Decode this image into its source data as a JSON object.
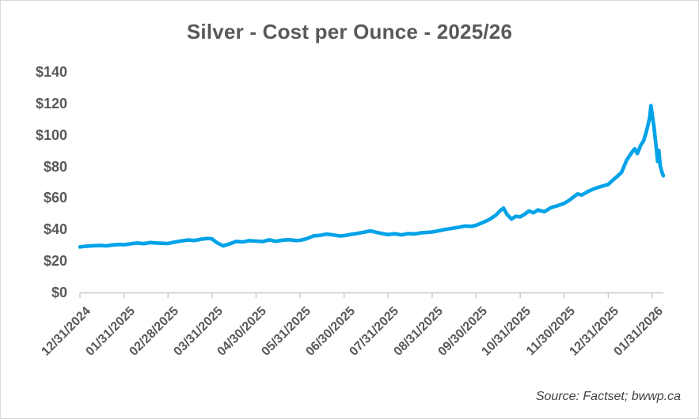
{
  "source": "Source: Factset; bwwp.ca",
  "colors": {
    "line": "#00A2E8",
    "label_text": "#595959",
    "source_text": "#404040",
    "axis_line": "#c8c8c8",
    "background": "#ffffff"
  },
  "chart_data": {
    "type": "line",
    "title": "Silver - Cost per Ounce - 2025/26",
    "xlabel": "",
    "ylabel": "",
    "grid": false,
    "legend": null,
    "ylim": [
      0,
      140
    ],
    "y_tick_labels": [
      "$0",
      "$20",
      "$40",
      "$60",
      "$80",
      "$100",
      "$120",
      "$140"
    ],
    "x_tick_labels": [
      "12/31/2024",
      "01/31/2025",
      "02/28/2025",
      "03/31/2025",
      "04/30/2025",
      "05/31/2025",
      "06/30/2025",
      "07/31/2025",
      "08/31/2025",
      "09/30/2025",
      "10/31/2025",
      "11/30/2025",
      "12/31/2025",
      "01/31/2026"
    ],
    "x_unit": "months-since-first-tick",
    "xlim": [
      0,
      13.25
    ],
    "series": [
      {
        "name": "Silver cost per ounce (USD)",
        "points": [
          [
            0.0,
            28.9
          ],
          [
            0.15,
            29.4
          ],
          [
            0.3,
            29.7
          ],
          [
            0.45,
            29.9
          ],
          [
            0.6,
            29.6
          ],
          [
            0.75,
            30.2
          ],
          [
            0.9,
            30.5
          ],
          [
            1.0,
            30.3
          ],
          [
            1.15,
            30.9
          ],
          [
            1.3,
            31.4
          ],
          [
            1.45,
            31.0
          ],
          [
            1.6,
            31.7
          ],
          [
            1.75,
            31.4
          ],
          [
            1.9,
            31.2
          ],
          [
            2.0,
            31.1
          ],
          [
            2.15,
            32.0
          ],
          [
            2.3,
            32.7
          ],
          [
            2.45,
            33.3
          ],
          [
            2.6,
            33.0
          ],
          [
            2.75,
            33.8
          ],
          [
            2.9,
            34.3
          ],
          [
            3.0,
            34.0
          ],
          [
            3.1,
            31.8
          ],
          [
            3.25,
            29.6
          ],
          [
            3.4,
            30.9
          ],
          [
            3.55,
            32.4
          ],
          [
            3.7,
            32.1
          ],
          [
            3.85,
            32.9
          ],
          [
            4.0,
            32.6
          ],
          [
            4.15,
            32.3
          ],
          [
            4.3,
            33.4
          ],
          [
            4.45,
            32.5
          ],
          [
            4.6,
            33.2
          ],
          [
            4.75,
            33.5
          ],
          [
            4.9,
            33.0
          ],
          [
            5.0,
            33.1
          ],
          [
            5.15,
            34.1
          ],
          [
            5.3,
            35.9
          ],
          [
            5.45,
            36.3
          ],
          [
            5.6,
            37.1
          ],
          [
            5.75,
            36.6
          ],
          [
            5.9,
            35.9
          ],
          [
            6.0,
            36.1
          ],
          [
            6.15,
            36.9
          ],
          [
            6.3,
            37.5
          ],
          [
            6.45,
            38.3
          ],
          [
            6.6,
            39.1
          ],
          [
            6.75,
            38.1
          ],
          [
            6.9,
            37.3
          ],
          [
            7.0,
            36.8
          ],
          [
            7.15,
            37.3
          ],
          [
            7.3,
            36.6
          ],
          [
            7.45,
            37.4
          ],
          [
            7.6,
            37.2
          ],
          [
            7.75,
            37.9
          ],
          [
            7.9,
            38.2
          ],
          [
            8.0,
            38.4
          ],
          [
            8.15,
            39.2
          ],
          [
            8.3,
            40.1
          ],
          [
            8.45,
            40.7
          ],
          [
            8.6,
            41.4
          ],
          [
            8.75,
            42.2
          ],
          [
            8.9,
            42.0
          ],
          [
            9.0,
            42.7
          ],
          [
            9.15,
            44.4
          ],
          [
            9.3,
            46.3
          ],
          [
            9.45,
            49.2
          ],
          [
            9.55,
            52.1
          ],
          [
            9.62,
            53.6
          ],
          [
            9.7,
            49.6
          ],
          [
            9.8,
            46.6
          ],
          [
            9.9,
            48.3
          ],
          [
            10.0,
            48.0
          ],
          [
            10.1,
            49.7
          ],
          [
            10.2,
            51.8
          ],
          [
            10.3,
            50.6
          ],
          [
            10.4,
            52.4
          ],
          [
            10.55,
            51.3
          ],
          [
            10.7,
            53.9
          ],
          [
            10.85,
            55.1
          ],
          [
            11.0,
            56.6
          ],
          [
            11.1,
            58.3
          ],
          [
            11.2,
            60.4
          ],
          [
            11.3,
            62.5
          ],
          [
            11.4,
            61.9
          ],
          [
            11.55,
            64.3
          ],
          [
            11.7,
            66.1
          ],
          [
            11.85,
            67.4
          ],
          [
            12.0,
            68.6
          ],
          [
            12.1,
            71.2
          ],
          [
            12.2,
            73.6
          ],
          [
            12.3,
            76.2
          ],
          [
            12.42,
            84.1
          ],
          [
            12.55,
            89.5
          ],
          [
            12.6,
            91.2
          ],
          [
            12.66,
            88.2
          ],
          [
            12.74,
            93.6
          ],
          [
            12.8,
            96.2
          ],
          [
            12.86,
            101.5
          ],
          [
            12.9,
            106.0
          ],
          [
            12.94,
            111.0
          ],
          [
            12.97,
            118.6
          ],
          [
            13.04,
            104.8
          ],
          [
            13.09,
            91.8
          ],
          [
            13.12,
            83.2
          ],
          [
            13.15,
            90.1
          ],
          [
            13.18,
            80.4
          ],
          [
            13.22,
            76.4
          ],
          [
            13.25,
            74.1
          ]
        ]
      }
    ]
  }
}
